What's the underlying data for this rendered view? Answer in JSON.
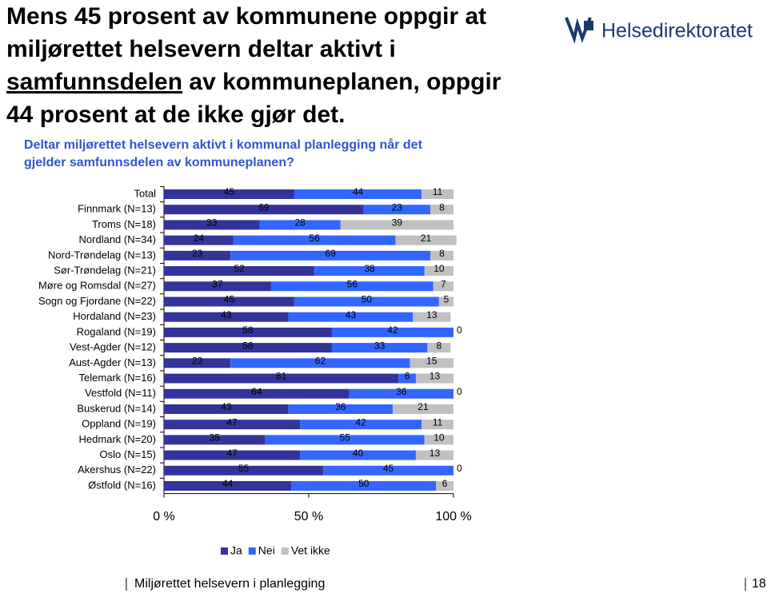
{
  "slide": {
    "title": [
      "Mens 45 prosent av kommunene oppgir at",
      "miljørettet helsevern deltar aktivt i",
      "samfunnsdelen",
      " av kommuneplanen, oppgir",
      "44 prosent at de ikke gjør det."
    ],
    "logo": "Helsedirektoratet",
    "footer": "Miljørettet helsevern i planlegging",
    "page": "18"
  },
  "chart_data": {
    "type": "stacked_bar_horizontal",
    "title": "Deltar miljørettet helsevern aktivt i kommunal planlegging når det gjelder samfunnsdelen av kommuneplanen?",
    "categories": [
      "Total",
      "Finnmark (N=13)",
      "Troms (N=18)",
      "Nordland (N=34)",
      "Nord-Trøndelag (N=13)",
      "Sør-Trøndelag (N=21)",
      "Møre og Romsdal (N=27)",
      "Sogn og Fjordane (N=22)",
      "Hordaland (N=23)",
      "Rogaland (N=19)",
      "Vest-Agder (N=12)",
      "Aust-Agder (N=13)",
      "Telemark (N=16)",
      "Vestfold (N=11)",
      "Buskerud (N=14)",
      "Oppland (N=19)",
      "Hedmark (N=20)",
      "Oslo (N=15)",
      "Akershus (N=22)",
      "Østfold (N=16)"
    ],
    "series": [
      {
        "name": "Ja",
        "color": "#333399",
        "values": [
          45,
          69,
          33,
          24,
          23,
          52,
          37,
          45,
          43,
          58,
          58,
          23,
          81,
          64,
          43,
          47,
          35,
          47,
          55,
          44
        ]
      },
      {
        "name": "Nei",
        "color": "#3366ff",
        "values": [
          44,
          23,
          28,
          56,
          69,
          38,
          56,
          50,
          43,
          42,
          33,
          62,
          6,
          36,
          36,
          42,
          55,
          40,
          45,
          50
        ]
      },
      {
        "name": "Vet ikke",
        "color": "#c0c0c0",
        "values": [
          11,
          8,
          39,
          21,
          8,
          10,
          7,
          5,
          13,
          0,
          8,
          15,
          13,
          0,
          21,
          11,
          10,
          13,
          0,
          6
        ]
      }
    ],
    "xlim": [
      0,
      100
    ],
    "xticks": [
      {
        "value": 0,
        "label": "0 %"
      },
      {
        "value": 50,
        "label": "50 %"
      },
      {
        "value": 100,
        "label": "100 %"
      }
    ],
    "legend": "bottom"
  }
}
